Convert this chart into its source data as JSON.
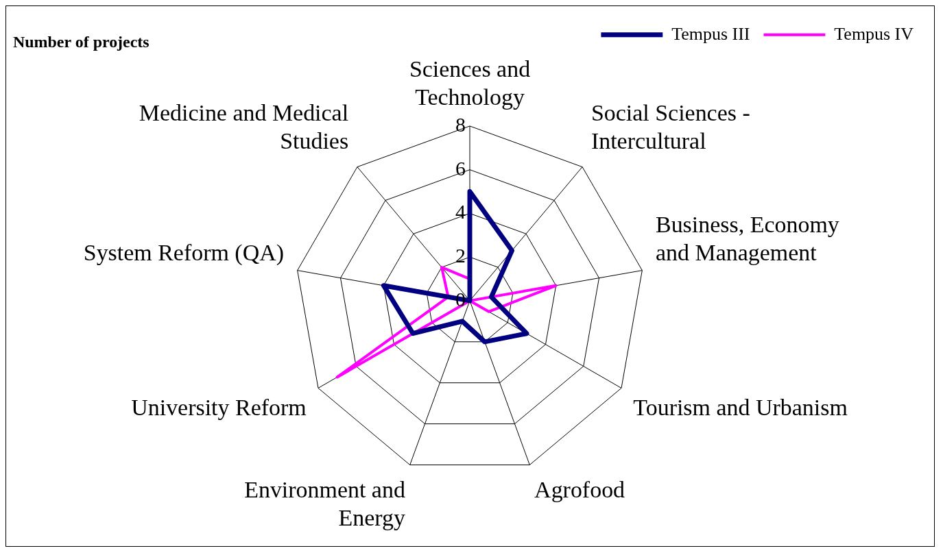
{
  "chart_data": {
    "type": "radar",
    "title": "Number of projects",
    "categories": [
      "Sciences and Technology",
      "Social Sciences - Intercultural",
      "Business, Economy and Management",
      "Tourism and Urbanism",
      "Agrofood",
      "Environment and Energy",
      "University Reform",
      "System Reform (QA)",
      "Medicine and Medical Studies"
    ],
    "series": [
      {
        "name": "Tempus III",
        "color": "#000080",
        "values": [
          5,
          3,
          1,
          3,
          2,
          1,
          3,
          4,
          0
        ]
      },
      {
        "name": "Tempus IV",
        "color": "#ff00ff",
        "values": [
          1,
          0,
          4,
          1,
          0,
          0,
          7,
          1,
          2
        ]
      }
    ],
    "ylim": [
      0,
      8
    ],
    "yticks": [
      0,
      2,
      4,
      6,
      8
    ],
    "grid": true,
    "legend": "top right",
    "marker": "none"
  }
}
